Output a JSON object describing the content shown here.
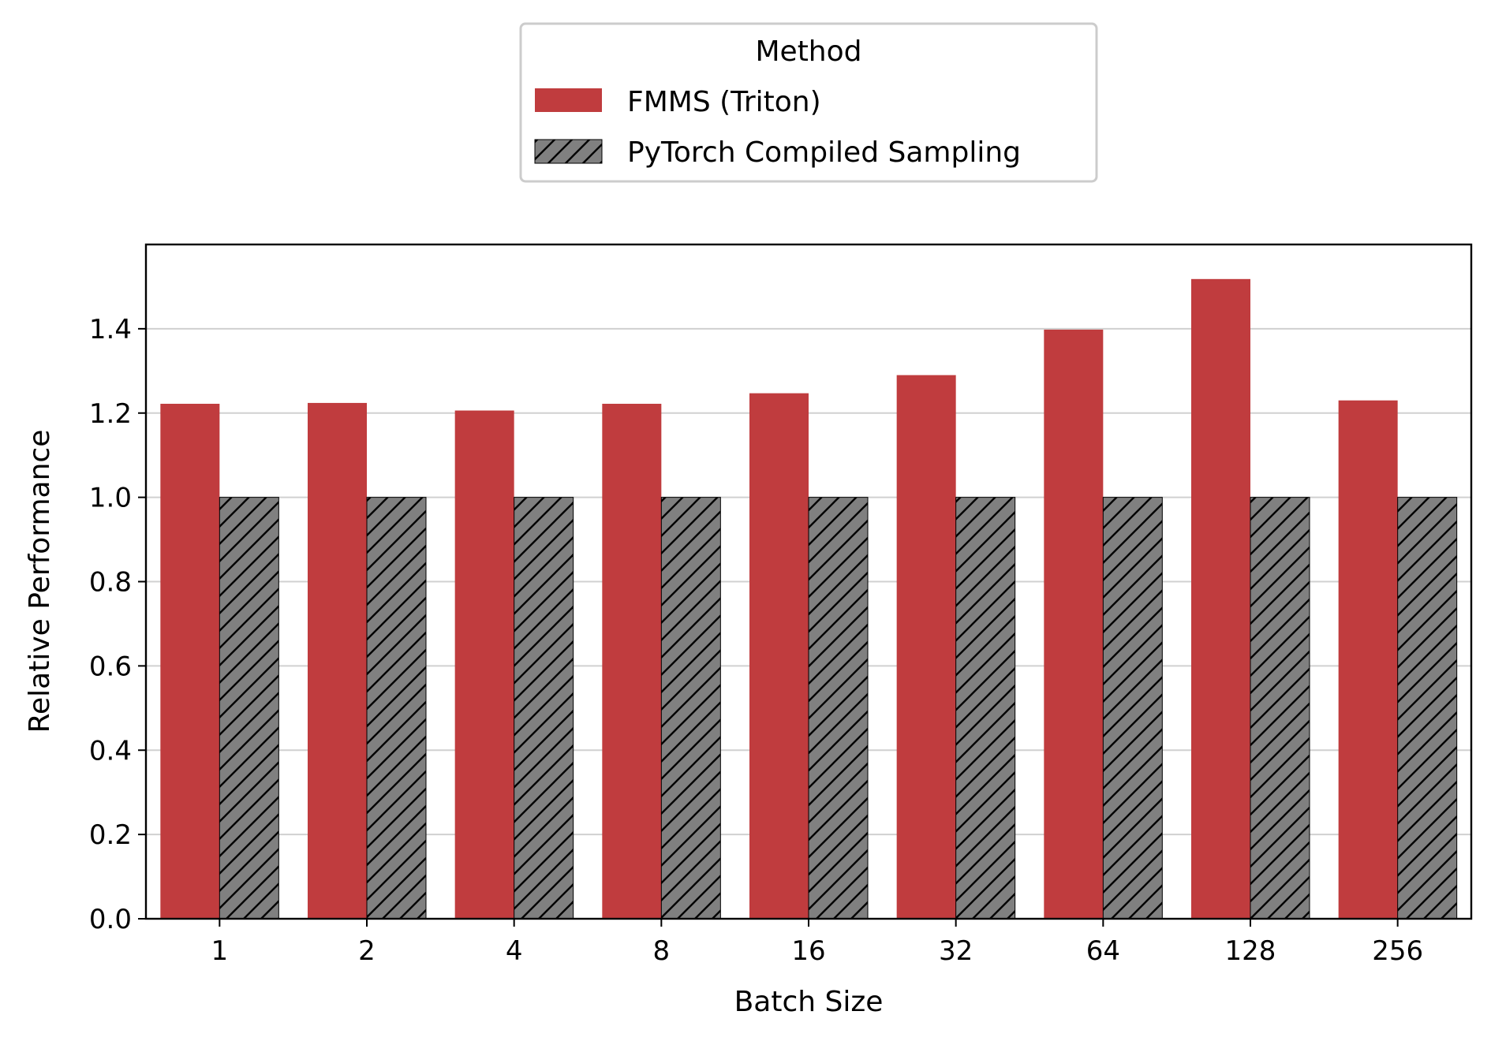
{
  "chart_data": {
    "type": "bar",
    "xlabel": "Batch Size",
    "ylabel": "Relative Performance",
    "categories": [
      "1",
      "2",
      "4",
      "8",
      "16",
      "32",
      "64",
      "128",
      "256"
    ],
    "series": [
      {
        "name": "FMMS (Triton)",
        "color": "#c03c3e",
        "hatch": false,
        "values": [
          1.222,
          1.224,
          1.206,
          1.222,
          1.247,
          1.29,
          1.398,
          1.518,
          1.23
        ]
      },
      {
        "name": "PyTorch Compiled Sampling",
        "color": "#808080",
        "hatch": true,
        "values": [
          1.0,
          1.0,
          1.0,
          1.0,
          1.0,
          1.0,
          1.0,
          1.0,
          1.0
        ]
      }
    ],
    "ylim": [
      0,
      1.6
    ],
    "yticks": [
      "0.0",
      "0.2",
      "0.4",
      "0.6",
      "0.8",
      "1.0",
      "1.2",
      "1.4"
    ],
    "grid": "horizontal",
    "legend": {
      "title": "Method",
      "position": "top-center, above plot"
    }
  }
}
